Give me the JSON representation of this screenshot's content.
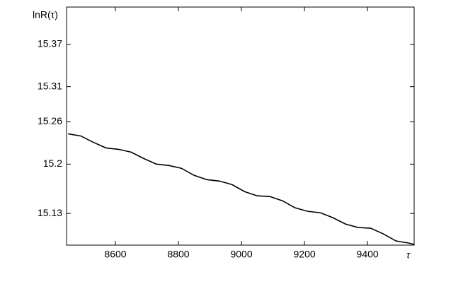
{
  "chart_data": {
    "type": "line",
    "y_label": "lnR(τ)",
    "x_label": "τ",
    "x": [
      8450,
      8490,
      8530,
      8570,
      8610,
      8650,
      8690,
      8730,
      8770,
      8810,
      8850,
      8890,
      8930,
      8970,
      9010,
      9050,
      9090,
      9130,
      9170,
      9210,
      9250,
      9290,
      9330,
      9370,
      9410,
      9450,
      9490,
      9530,
      9548
    ],
    "series": [
      {
        "color": "#000000",
        "values": [
          15.243,
          15.24,
          15.231,
          15.223,
          15.221,
          15.217,
          15.208,
          15.2,
          15.198,
          15.194,
          15.184,
          15.178,
          15.176,
          15.171,
          15.161,
          15.155,
          15.154,
          15.148,
          15.138,
          15.133,
          15.131,
          15.124,
          15.115,
          15.11,
          15.109,
          15.101,
          15.091,
          15.088,
          15.086
        ]
      }
    ],
    "xlim": [
      8445,
      9548
    ],
    "xticks": [
      8600,
      8800,
      9000,
      9200,
      9400
    ],
    "ylim": [
      15.085,
      15.423
    ],
    "yticks": [
      15.13,
      15.2,
      15.26,
      15.31,
      15.37
    ]
  }
}
